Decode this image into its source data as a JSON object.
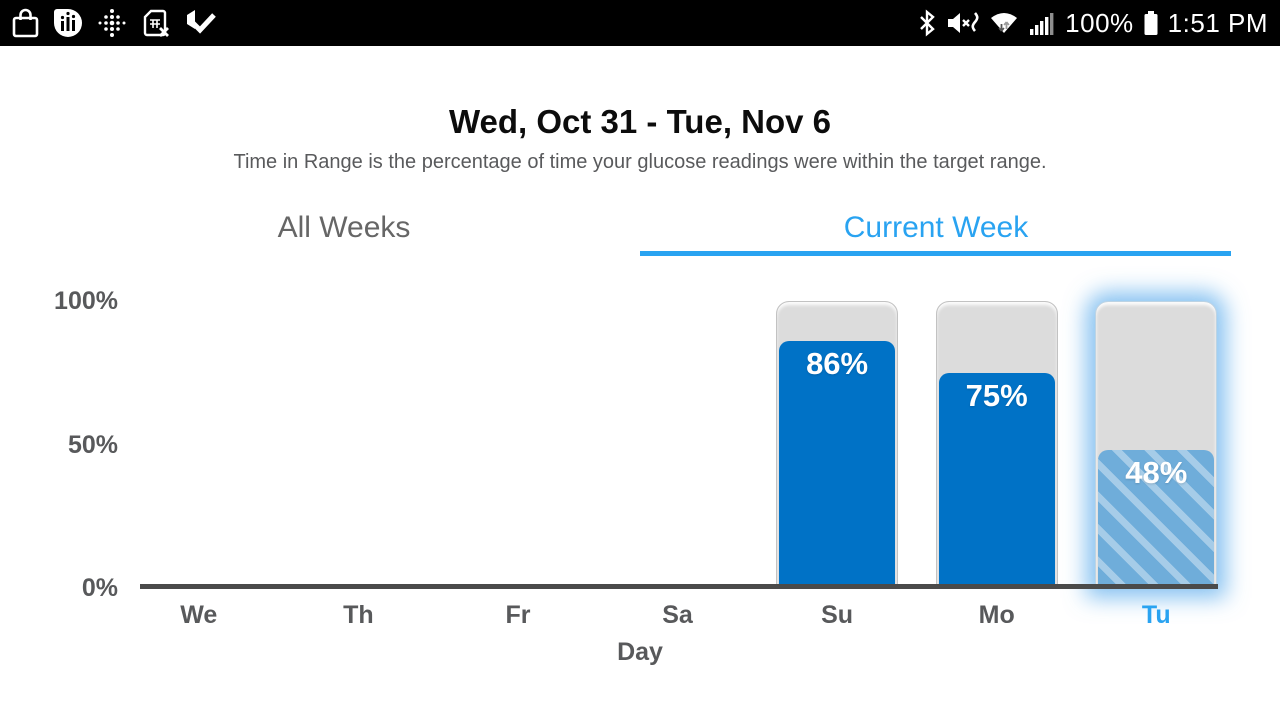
{
  "status_bar": {
    "time": "1:51 PM",
    "battery_percent": "100%",
    "colors": {
      "background": "#000000",
      "foreground": "#ffffff"
    },
    "left_icons": [
      "bag-icon",
      "chart-bubble-icon",
      "fitbit-dots-icon",
      "sim-missing-icon",
      "play-protect-check-icon"
    ],
    "right_icons": [
      "bluetooth-icon",
      "mute-vibrate-icon",
      "wifi-icon",
      "cell-signal-icon",
      "battery-icon"
    ]
  },
  "header": {
    "title": "Wed, Oct 31 - Tue, Nov 6",
    "subtitle": "Time in Range is the percentage of time your glucose readings were within the target range."
  },
  "tabs": {
    "items": [
      {
        "label": "All Weeks",
        "active": false
      },
      {
        "label": "Current Week",
        "active": true
      }
    ],
    "active_color": "#29a3f1",
    "inactive_color": "#666666"
  },
  "chart_data": {
    "type": "bar",
    "title": "Time in Range by day, current week",
    "categories": [
      "We",
      "Th",
      "Fr",
      "Sa",
      "Su",
      "Mo",
      "Tu"
    ],
    "values": [
      null,
      null,
      null,
      null,
      86,
      75,
      48
    ],
    "value_labels": [
      null,
      null,
      null,
      null,
      "86%",
      "75%",
      "48%"
    ],
    "xlabel": "Day",
    "ylabel": "",
    "ylim": [
      0,
      100
    ],
    "yticks": [
      {
        "label": "100%",
        "value": 100
      },
      {
        "label": "50%",
        "value": 50
      },
      {
        "label": "0%",
        "value": 0
      }
    ],
    "grid": false,
    "legend": null,
    "selected_category": "Tu",
    "selected_style": "hatched-glow",
    "colors": {
      "bar": "#0072c6",
      "selected_bar": "#6fadda",
      "track": "#dcdcdc",
      "axis": "#4a4a4a",
      "tick": "#58595b",
      "selected_tick": "#2aa5f5"
    }
  }
}
